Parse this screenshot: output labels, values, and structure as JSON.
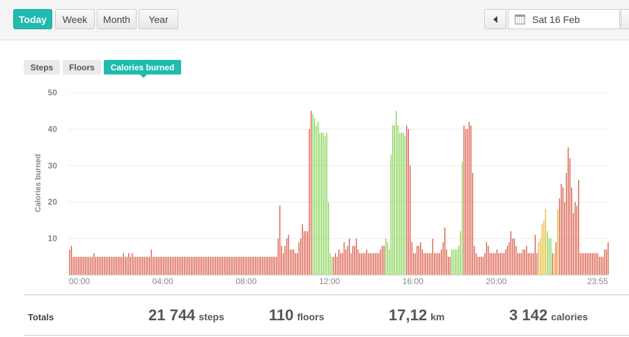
{
  "toolbar": {
    "periods": [
      {
        "label": "Today",
        "active": true
      },
      {
        "label": "Week",
        "active": false
      },
      {
        "label": "Month",
        "active": false
      },
      {
        "label": "Year",
        "active": false
      }
    ],
    "date": "Sat 16 Feb"
  },
  "tabs": [
    {
      "label": "Steps",
      "active": false
    },
    {
      "label": "Floors",
      "active": false
    },
    {
      "label": "Calories burned",
      "active": true
    }
  ],
  "chart_data": {
    "type": "bar",
    "ylabel": "Calories burned",
    "ylim": [
      0,
      50
    ],
    "yticks": [
      10,
      20,
      30,
      40,
      50
    ],
    "xticks": [
      "00:00",
      "04:00",
      "08:00",
      "12:00",
      "16:00",
      "20:00",
      "23:55"
    ],
    "interval_minutes": 5,
    "grid": true,
    "colors": {
      "low": "#d9533f",
      "moderate": "#e8b62a",
      "high": "#7fd24a"
    },
    "values": [
      7,
      8,
      5,
      5,
      5,
      5,
      5,
      5,
      5,
      5,
      5,
      5,
      5,
      5,
      6,
      5,
      5,
      5,
      5,
      5,
      5,
      5,
      5,
      5,
      5,
      5,
      5,
      5,
      5,
      5,
      5,
      6,
      5,
      5,
      6,
      5,
      6,
      5,
      5,
      5,
      5,
      5,
      5,
      5,
      5,
      5,
      5,
      7,
      5,
      5,
      5,
      5,
      5,
      5,
      5,
      5,
      5,
      5,
      5,
      5,
      5,
      5,
      5,
      5,
      5,
      5,
      5,
      5,
      5,
      5,
      5,
      5,
      5,
      5,
      5,
      5,
      5,
      5,
      5,
      5,
      5,
      5,
      5,
      5,
      5,
      5,
      5,
      5,
      5,
      5,
      5,
      5,
      5,
      5,
      5,
      5,
      5,
      5,
      5,
      5,
      5,
      5,
      5,
      5,
      5,
      5,
      5,
      5,
      5,
      5,
      5,
      5,
      5,
      5,
      5,
      5,
      5,
      5,
      5,
      5,
      10,
      19,
      8,
      6,
      8,
      10,
      11,
      7,
      7,
      7,
      6,
      6,
      9,
      10,
      14,
      12,
      12,
      12,
      40,
      45,
      44,
      43,
      41,
      42,
      39,
      39,
      39,
      38,
      39,
      20,
      6,
      5,
      5,
      6,
      5,
      7,
      6,
      6,
      9,
      7,
      8,
      10,
      6,
      8,
      8,
      10,
      7,
      6,
      6,
      6,
      6,
      7,
      6,
      6,
      6,
      6,
      6,
      6,
      6,
      7,
      8,
      8,
      10,
      9,
      7,
      33,
      41,
      41,
      45,
      41,
      39,
      39,
      39,
      38,
      41,
      40,
      30,
      9,
      6,
      6,
      8,
      8,
      9,
      7,
      6,
      6,
      6,
      6,
      6,
      10,
      6,
      6,
      6,
      6,
      7,
      9,
      13,
      7,
      5,
      5,
      7,
      7,
      7,
      7,
      8,
      12,
      31,
      41,
      40,
      40,
      42,
      41,
      28,
      8,
      6,
      5,
      5,
      5,
      5,
      6,
      9,
      8,
      6,
      6,
      6,
      6,
      7,
      6,
      6,
      6,
      6,
      7,
      8,
      9,
      12,
      10,
      10,
      8,
      6,
      6,
      6,
      7,
      7,
      8,
      6,
      6,
      6,
      6,
      11,
      6,
      9,
      10,
      14,
      15,
      18,
      12,
      10,
      10,
      6,
      6,
      9,
      18,
      21,
      25,
      24,
      20,
      28,
      35,
      32,
      24,
      17,
      20,
      19,
      26,
      6,
      6,
      6,
      6,
      6,
      6,
      6,
      6,
      6,
      6,
      6,
      5,
      5,
      5,
      7,
      7,
      9
    ],
    "levels": "LLLLLLLLLLLLLLLLLLLLLLLLLLLLLLLLLLLLLLLLLLLLLLLLLLLLLLLLLLLLLLLLLLLLLLLLLLLLLLLLLLLLLLLLLLLLLLLLLLLLLLLLLLLLLLLLLLLLLLLLLLLLLLLLLLLLLLLLLLLLHHHHHHHHHHHHLLLLLLLLLLLLLLLLLLLLLLLLLLLLLLHHHHHHHHHHHHLLLLLLLLLLLLLLLLLLLLLLLLLLHHHHHHHLLLLLLLLLLLLLLLLLLLLLLLLLLLLLLLLLLLLLLLLLLLMMMMMHHHLMLMLLLLLLLLLLLLLLLLLL"
  },
  "totals": {
    "label": "Totals",
    "items": [
      {
        "value": "21 744",
        "unit": "steps"
      },
      {
        "value": "110",
        "unit": "floors"
      },
      {
        "value": "17,12",
        "unit": "km"
      },
      {
        "value": "3 142",
        "unit": "calories"
      }
    ]
  }
}
